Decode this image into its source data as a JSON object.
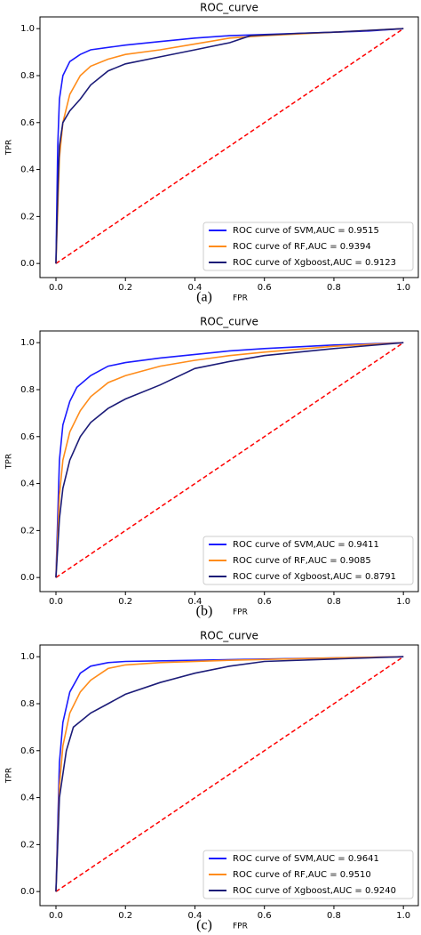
{
  "chart_data": [
    {
      "type": "line",
      "title": "ROC_curve",
      "panel_label": "(a)",
      "xlabel": "FPR",
      "ylabel": "TPR",
      "xlim": [
        -0.046,
        1.043
      ],
      "ylim": [
        -0.06,
        1.05
      ],
      "xticks": [
        {
          "value": 0,
          "label": "0.0"
        },
        0.2,
        0.4,
        0.6,
        0.8,
        {
          "value": 1,
          "label": "1.0"
        }
      ],
      "yticks": [
        {
          "value": 0,
          "label": "0.0"
        },
        0.2,
        0.4,
        0.6,
        0.8,
        {
          "value": 1,
          "label": "1.0"
        }
      ],
      "grid": false,
      "legend": "lower right",
      "diagonal": {
        "color": "#ff0000",
        "x": [
          0,
          1
        ],
        "values": [
          0,
          1
        ]
      },
      "series": [
        {
          "name": "ROC curve of SVM,AUC = 0.9515",
          "color": "#1a1aff",
          "x": [
            0,
            0.005,
            0.01,
            0.02,
            0.04,
            0.07,
            0.1,
            0.2,
            0.3,
            0.4,
            0.5,
            0.6,
            0.8,
            0.9,
            1
          ],
          "values": [
            0,
            0.5,
            0.7,
            0.8,
            0.86,
            0.89,
            0.91,
            0.93,
            0.945,
            0.96,
            0.97,
            0.975,
            0.985,
            0.99,
            1
          ]
        },
        {
          "name": "ROC curve of RF,AUC = 0.9394",
          "color": "#ff8c1a",
          "x": [
            0,
            0.01,
            0.02,
            0.04,
            0.07,
            0.1,
            0.15,
            0.2,
            0.3,
            0.4,
            0.5,
            0.6,
            0.8,
            1
          ],
          "values": [
            0,
            0.45,
            0.6,
            0.72,
            0.8,
            0.84,
            0.87,
            0.89,
            0.91,
            0.935,
            0.96,
            0.97,
            0.985,
            1
          ]
        },
        {
          "name": "ROC curve of Xgboost,AUC = 0.9123",
          "color": "#1c1c78",
          "x": [
            0,
            0.005,
            0.01,
            0.02,
            0.04,
            0.07,
            0.1,
            0.15,
            0.2,
            0.3,
            0.4,
            0.5,
            0.56,
            0.7,
            0.8,
            1
          ],
          "values": [
            0,
            0.3,
            0.5,
            0.6,
            0.65,
            0.7,
            0.76,
            0.82,
            0.85,
            0.88,
            0.91,
            0.94,
            0.97,
            0.98,
            0.985,
            1
          ]
        }
      ]
    },
    {
      "type": "line",
      "title": "ROC_curve",
      "panel_label": "(b)",
      "xlabel": "FPR",
      "ylabel": "TPR",
      "xlim": [
        -0.046,
        1.043
      ],
      "ylim": [
        -0.06,
        1.05
      ],
      "xticks": [
        {
          "value": 0,
          "label": "0.0"
        },
        0.2,
        0.4,
        0.6,
        0.8,
        {
          "value": 1,
          "label": "1.0"
        }
      ],
      "yticks": [
        {
          "value": 0,
          "label": "0.0"
        },
        0.2,
        0.4,
        0.6,
        0.8,
        {
          "value": 1,
          "label": "1.0"
        }
      ],
      "grid": false,
      "legend": "lower right",
      "diagonal": {
        "color": "#ff0000",
        "x": [
          0,
          1
        ],
        "values": [
          0,
          1
        ]
      },
      "series": [
        {
          "name": "ROC curve of SVM,AUC = 0.9411",
          "color": "#1a1aff",
          "x": [
            0,
            0.01,
            0.02,
            0.04,
            0.06,
            0.1,
            0.15,
            0.2,
            0.3,
            0.4,
            0.5,
            0.6,
            0.8,
            1
          ],
          "values": [
            0,
            0.5,
            0.65,
            0.75,
            0.81,
            0.86,
            0.9,
            0.915,
            0.935,
            0.95,
            0.965,
            0.975,
            0.99,
            1
          ]
        },
        {
          "name": "ROC curve of RF,AUC = 0.9085",
          "color": "#ff8c1a",
          "x": [
            0,
            0.01,
            0.02,
            0.04,
            0.07,
            0.1,
            0.15,
            0.2,
            0.3,
            0.4,
            0.5,
            0.6,
            0.8,
            1
          ],
          "values": [
            0,
            0.35,
            0.5,
            0.62,
            0.71,
            0.77,
            0.83,
            0.86,
            0.9,
            0.925,
            0.945,
            0.96,
            0.985,
            1
          ]
        },
        {
          "name": "ROC curve of Xgboost,AUC = 0.8791",
          "color": "#1c1c78",
          "x": [
            0,
            0.01,
            0.02,
            0.04,
            0.07,
            0.1,
            0.15,
            0.2,
            0.3,
            0.4,
            0.5,
            0.6,
            0.8,
            1
          ],
          "values": [
            0,
            0.25,
            0.38,
            0.5,
            0.6,
            0.66,
            0.72,
            0.76,
            0.82,
            0.89,
            0.92,
            0.945,
            0.975,
            1
          ]
        }
      ]
    },
    {
      "type": "line",
      "title": "ROC_curve",
      "panel_label": "(c)",
      "xlabel": "FPR",
      "ylabel": "TPR",
      "xlim": [
        -0.046,
        1.043
      ],
      "ylim": [
        -0.06,
        1.05
      ],
      "xticks": [
        {
          "value": 0,
          "label": "0.0"
        },
        0.2,
        0.4,
        0.6,
        0.8,
        {
          "value": 1,
          "label": "1.0"
        }
      ],
      "yticks": [
        {
          "value": 0,
          "label": "0.0"
        },
        0.2,
        0.4,
        0.6,
        0.8,
        {
          "value": 1,
          "label": "1.0"
        }
      ],
      "grid": false,
      "legend": "lower right",
      "diagonal": {
        "color": "#ff0000",
        "x": [
          0,
          1
        ],
        "values": [
          0,
          1
        ]
      },
      "series": [
        {
          "name": "ROC curve of SVM,AUC = 0.9641",
          "color": "#1a1aff",
          "x": [
            0,
            0.01,
            0.02,
            0.04,
            0.07,
            0.1,
            0.15,
            0.2,
            0.4,
            0.6,
            0.8,
            1
          ],
          "values": [
            0,
            0.55,
            0.72,
            0.85,
            0.93,
            0.96,
            0.975,
            0.98,
            0.985,
            0.99,
            0.995,
            1
          ]
        },
        {
          "name": "ROC curve of RF,AUC = 0.9510",
          "color": "#ff8c1a",
          "x": [
            0,
            0.01,
            0.02,
            0.04,
            0.07,
            0.1,
            0.15,
            0.2,
            0.3,
            0.5,
            0.8,
            1
          ],
          "values": [
            0,
            0.45,
            0.62,
            0.76,
            0.85,
            0.9,
            0.95,
            0.965,
            0.975,
            0.985,
            0.995,
            1
          ]
        },
        {
          "name": "ROC curve of Xgboost,AUC = 0.9240",
          "color": "#1c1c78",
          "x": [
            0,
            0.01,
            0.03,
            0.05,
            0.1,
            0.15,
            0.2,
            0.3,
            0.4,
            0.5,
            0.6,
            0.8,
            1
          ],
          "values": [
            0,
            0.4,
            0.6,
            0.7,
            0.76,
            0.8,
            0.84,
            0.89,
            0.93,
            0.96,
            0.98,
            0.99,
            1
          ]
        }
      ]
    }
  ]
}
